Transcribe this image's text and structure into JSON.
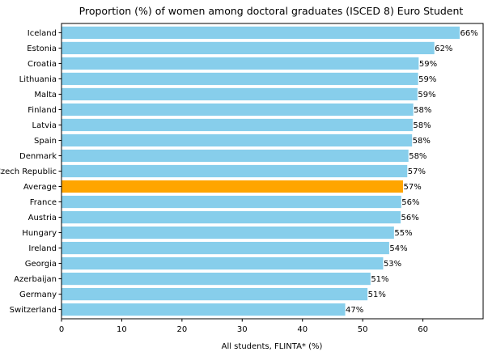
{
  "chart_data": {
    "type": "bar",
    "orientation": "horizontal",
    "title": "Proportion (%) of women among doctoral graduates (ISCED 8) Euro Student",
    "xlabel": "All students, FLINTA* (%)",
    "ylabel": "",
    "xlim": [
      0,
      70
    ],
    "xticks": [
      0,
      10,
      20,
      30,
      40,
      50,
      60
    ],
    "grid": false,
    "value_suffix": "%",
    "categories": [
      "Iceland",
      "Estonia",
      "Croatia",
      "Lithuania",
      "Malta",
      "Finland",
      "Latvia",
      "Spain",
      "Denmark",
      "Czech Republic",
      "Average",
      "France",
      "Austria",
      "Hungary",
      "Ireland",
      "Georgia",
      "Azerbaijan",
      "Germany",
      "Switzerland"
    ],
    "values": [
      66.1,
      61.9,
      59.3,
      59.2,
      59.1,
      58.4,
      58.3,
      58.2,
      57.6,
      57.4,
      56.7,
      56.4,
      56.3,
      55.2,
      54.4,
      53.4,
      51.3,
      50.8,
      47.1
    ],
    "labels": [
      "66%",
      "62%",
      "59%",
      "59%",
      "59%",
      "58%",
      "58%",
      "58%",
      "58%",
      "57%",
      "57%",
      "56%",
      "56%",
      "55%",
      "54%",
      "53%",
      "51%",
      "51%",
      "47%"
    ],
    "colors": {
      "default": "#87CEEB",
      "highlight": "#FFA500",
      "highlight_category": "Average"
    }
  }
}
